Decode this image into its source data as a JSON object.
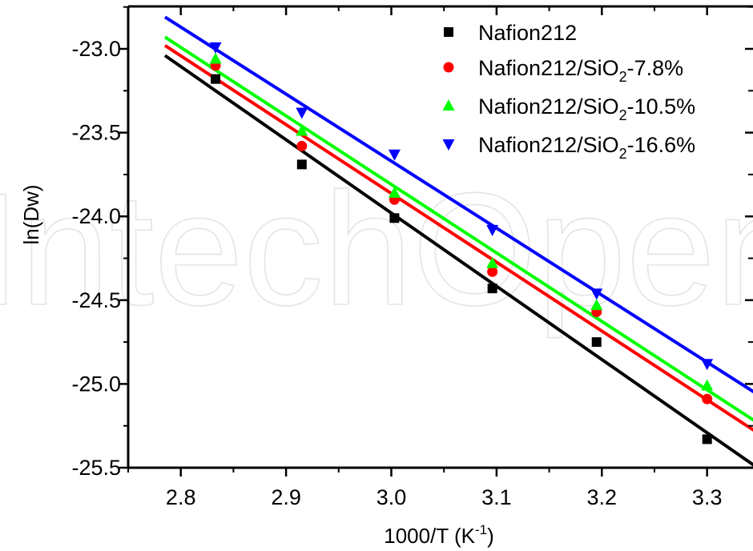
{
  "chart_data": {
    "type": "scatter",
    "xlabel": {
      "base": "1000/T (K",
      "sup": "-1",
      "tail": ")"
    },
    "ylabel": "ln(Dw)",
    "xlim": [
      2.75,
      3.35
    ],
    "ylim": [
      -25.5,
      -22.75
    ],
    "xticks": [
      2.8,
      2.9,
      3.0,
      3.1,
      3.2,
      3.3
    ],
    "xtick_labels": [
      "2.8",
      "2.9",
      "3.0",
      "3.1",
      "3.2",
      "3.3"
    ],
    "yticks": [
      -23.0,
      -23.5,
      -24.0,
      -24.5,
      -25.0,
      -25.5
    ],
    "ytick_labels": [
      "-23.0",
      "-23.5",
      "-24.0",
      "-24.5",
      "-25.0",
      "-25.5"
    ],
    "legend_position": "top-right",
    "grid": false,
    "watermark": "IntechOpen",
    "series": [
      {
        "name": "Nafion212",
        "label_parts": [
          "Nafion212"
        ],
        "marker": "square",
        "color": "#000000",
        "x": [
          2.833,
          2.915,
          3.003,
          3.096,
          3.195,
          3.3
        ],
        "y": [
          -23.18,
          -23.69,
          -24.01,
          -24.43,
          -24.75,
          -25.33
        ],
        "fit": {
          "x": [
            2.785,
            3.35
          ],
          "y": [
            -23.04,
            -25.51
          ]
        }
      },
      {
        "name": "Nafion212/SiO2-7.8%",
        "label_parts": [
          "Nafion212/SiO",
          "2",
          "-7.8%"
        ],
        "marker": "circle",
        "color": "#ff0000",
        "x": [
          2.833,
          2.915,
          3.003,
          3.096,
          3.195,
          3.3
        ],
        "y": [
          -23.1,
          -23.58,
          -23.9,
          -24.33,
          -24.57,
          -25.09
        ],
        "fit": {
          "x": [
            2.785,
            3.35
          ],
          "y": [
            -22.98,
            -25.3
          ]
        }
      },
      {
        "name": "Nafion212/SiO2-10.5%",
        "label_parts": [
          "Nafion212/SiO",
          "2",
          "-10.5%"
        ],
        "marker": "triangle-up",
        "color": "#00ff00",
        "x": [
          2.833,
          2.915,
          3.003,
          3.096,
          3.195,
          3.3
        ],
        "y": [
          -23.06,
          -23.49,
          -23.86,
          -24.28,
          -24.53,
          -25.01
        ],
        "fit": {
          "x": [
            2.785,
            3.35
          ],
          "y": [
            -22.93,
            -25.24
          ]
        }
      },
      {
        "name": "Nafion212/SiO2-16.6%",
        "label_parts": [
          "Nafion212/SiO",
          "2",
          "-16.6%"
        ],
        "marker": "triangle-down",
        "color": "#0000ff",
        "x": [
          2.833,
          2.915,
          3.003,
          3.096,
          3.195,
          3.3
        ],
        "y": [
          -22.99,
          -23.38,
          -23.63,
          -24.08,
          -24.46,
          -24.88
        ],
        "fit": {
          "x": [
            2.785,
            3.35
          ],
          "y": [
            -22.81,
            -25.07
          ]
        }
      }
    ]
  }
}
